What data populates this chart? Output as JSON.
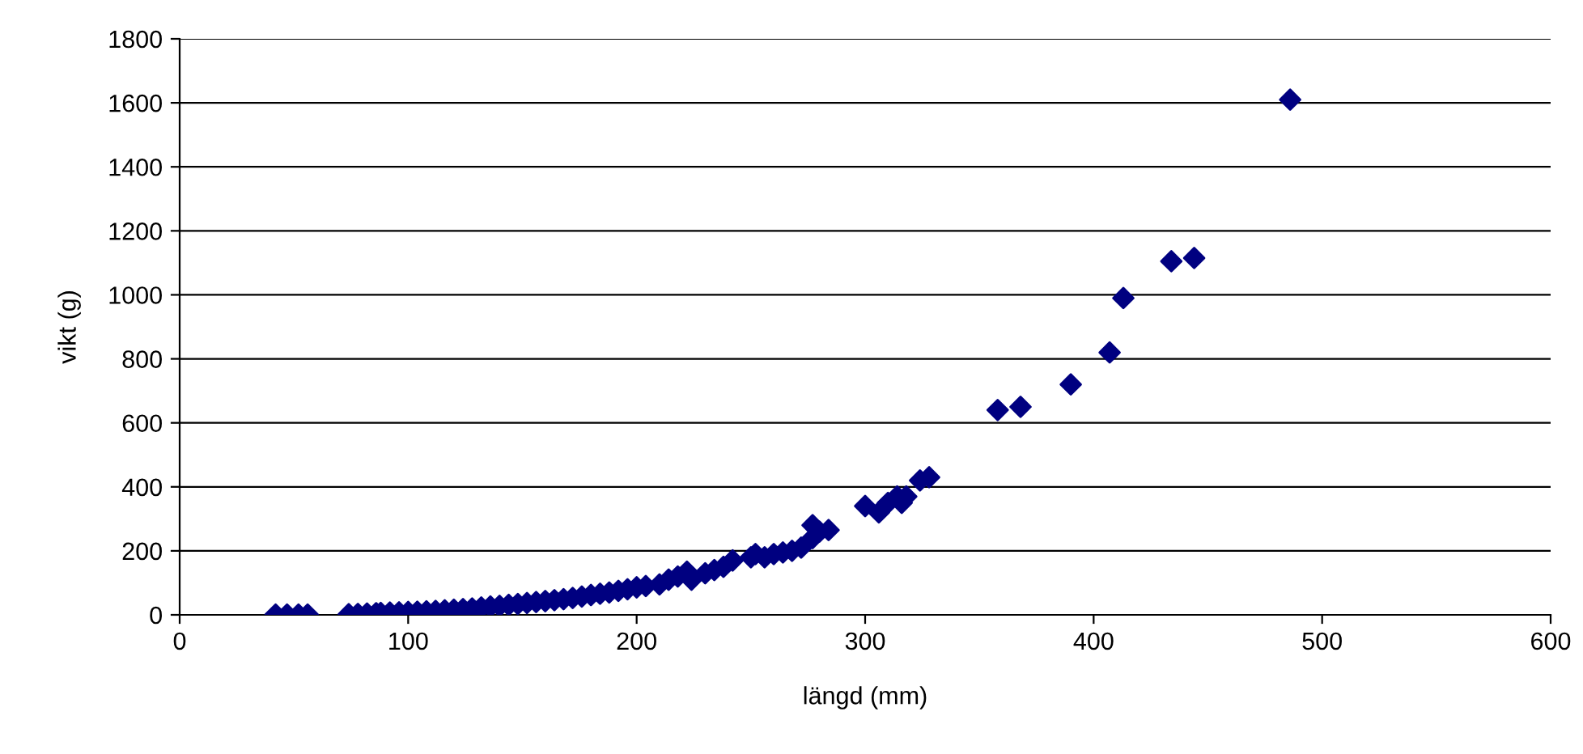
{
  "chart_data": {
    "type": "scatter",
    "xlabel": "längd (mm)",
    "ylabel": "vikt (g)",
    "x": [
      42,
      47,
      52,
      56,
      74,
      78,
      82,
      86,
      88,
      92,
      96,
      100,
      104,
      108,
      112,
      116,
      120,
      124,
      128,
      132,
      136,
      140,
      144,
      148,
      152,
      156,
      160,
      164,
      168,
      172,
      176,
      180,
      184,
      188,
      192,
      196,
      200,
      204,
      210,
      214,
      218,
      222,
      224,
      230,
      234,
      238,
      242,
      250,
      252,
      256,
      260,
      264,
      268,
      272,
      277,
      277,
      280,
      284,
      300,
      306,
      310,
      314,
      316,
      318,
      324,
      328,
      358,
      368,
      390,
      407,
      413,
      434,
      444,
      486
    ],
    "series": [
      {
        "color": "#000080",
        "values": [
          1,
          1,
          1,
          1,
          2,
          3,
          4,
          5,
          6,
          7,
          8,
          9,
          10,
          11,
          12,
          14,
          16,
          18,
          20,
          23,
          26,
          28,
          31,
          34,
          37,
          40,
          43,
          46,
          49,
          53,
          57,
          62,
          66,
          70,
          75,
          80,
          86,
          90,
          95,
          110,
          120,
          135,
          110,
          130,
          140,
          150,
          170,
          180,
          190,
          180,
          190,
          195,
          200,
          210,
          240,
          280,
          260,
          265,
          340,
          320,
          350,
          370,
          350,
          370,
          420,
          430,
          640,
          650,
          720,
          820,
          990,
          1105,
          1115,
          1610
        ]
      }
    ],
    "marker": "diamond",
    "xlim": [
      0,
      600
    ],
    "xticks": [
      0,
      100,
      200,
      300,
      400,
      500,
      600
    ],
    "ylim": [
      0,
      1800
    ],
    "yticks": [
      0,
      200,
      400,
      600,
      800,
      1000,
      1200,
      1400,
      1600,
      1800
    ],
    "grid": "y",
    "legend": false
  }
}
